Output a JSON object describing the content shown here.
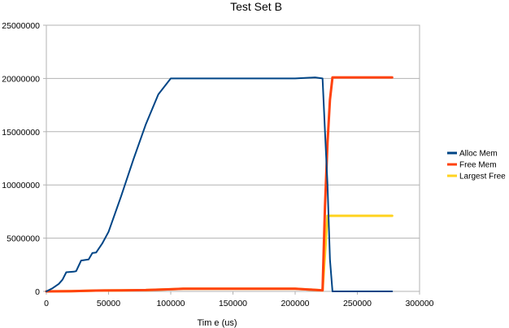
{
  "chart_data": {
    "type": "line",
    "title": "Test Set B",
    "xlabel": "Tim e (us)",
    "ylabel": "",
    "xlim": [
      0,
      300000
    ],
    "ylim": [
      0,
      25000000
    ],
    "x_ticks": [
      "0",
      "50000",
      "100000",
      "150000",
      "200000",
      "250000",
      "300000"
    ],
    "y_ticks": [
      "0",
      "5000000",
      "10000000",
      "15000000",
      "20000000",
      "25000000"
    ],
    "grid": true,
    "legend_position": "right",
    "series": [
      {
        "name": "Alloc Mem",
        "color": "#004586",
        "points": [
          [
            0,
            0
          ],
          [
            5000,
            300000
          ],
          [
            10000,
            700000
          ],
          [
            13000,
            1100000
          ],
          [
            16000,
            1800000
          ],
          [
            22000,
            1850000
          ],
          [
            24000,
            1900000
          ],
          [
            28000,
            2900000
          ],
          [
            34000,
            3000000
          ],
          [
            37000,
            3600000
          ],
          [
            40000,
            3650000
          ],
          [
            45000,
            4500000
          ],
          [
            50000,
            5600000
          ],
          [
            60000,
            8900000
          ],
          [
            70000,
            12400000
          ],
          [
            80000,
            15700000
          ],
          [
            90000,
            18500000
          ],
          [
            100000,
            20000000
          ],
          [
            110000,
            20000000
          ],
          [
            150000,
            20000000
          ],
          [
            200000,
            20000000
          ],
          [
            216000,
            20100000
          ],
          [
            222000,
            20000000
          ],
          [
            224000,
            15000000
          ],
          [
            226000,
            10000000
          ],
          [
            228000,
            3000000
          ],
          [
            230000,
            0
          ],
          [
            278000,
            0
          ]
        ]
      },
      {
        "name": "Free Mem",
        "color": "#ff420e",
        "points": [
          [
            0,
            0
          ],
          [
            20000,
            20000
          ],
          [
            40000,
            80000
          ],
          [
            60000,
            100000
          ],
          [
            80000,
            120000
          ],
          [
            100000,
            200000
          ],
          [
            110000,
            250000
          ],
          [
            150000,
            250000
          ],
          [
            200000,
            250000
          ],
          [
            222000,
            100000
          ],
          [
            224000,
            8000000
          ],
          [
            226000,
            14000000
          ],
          [
            228000,
            18000000
          ],
          [
            230000,
            20100000
          ],
          [
            278000,
            20100000
          ]
        ]
      },
      {
        "name": "Largest Free",
        "color": "#ffd320",
        "points": [
          [
            0,
            0
          ],
          [
            20000,
            20000
          ],
          [
            40000,
            80000
          ],
          [
            60000,
            100000
          ],
          [
            80000,
            120000
          ],
          [
            100000,
            200000
          ],
          [
            110000,
            250000
          ],
          [
            150000,
            250000
          ],
          [
            200000,
            250000
          ],
          [
            222000,
            100000
          ],
          [
            226000,
            7100000
          ],
          [
            278000,
            7100000
          ]
        ]
      }
    ]
  },
  "colors": {
    "grid": "#b3b3b3",
    "plot_border": "#b3b3b3"
  }
}
